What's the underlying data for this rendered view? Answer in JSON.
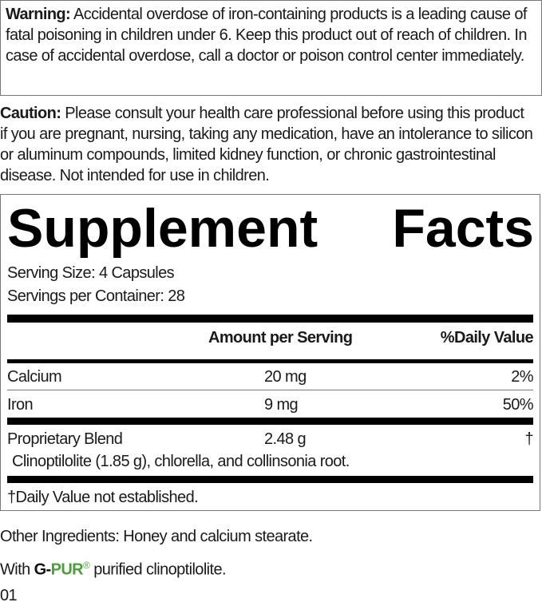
{
  "warning": {
    "label": "Warning:",
    "text": " Accidental overdose of iron-containing products is a leading cause of fatal poisoning in children under 6. Keep this product out of reach of children. In case of accidental overdose, call a doctor or poison control center immediately."
  },
  "caution": {
    "label": "Caution:",
    "text": " Please consult your health care professional before using this product if you are pregnant, nursing, taking any medication, have an intolerance to silicon or aluminum compounds, limited kidney function, or chronic gastrointestinal disease. Not intended for use in children."
  },
  "facts": {
    "title_1": "Supplement",
    "title_2": "Facts",
    "serving_size": "Serving Size: 4 Capsules",
    "servings_per_container": "Servings per Container: 28",
    "header_amount": "Amount per Serving",
    "header_dv": "%Daily Value",
    "rows": [
      {
        "name": "Calcium",
        "amount": "20 mg",
        "dv": "2%"
      },
      {
        "name": "Iron",
        "amount": "9 mg",
        "dv": "50%"
      },
      {
        "name": "Proprietary Blend",
        "amount": "2.48 g",
        "dv": "†",
        "detail": "Clinoptilolite (1.85 g), chlorella, and collinsonia root."
      }
    ],
    "footnote": "†Daily Value not established."
  },
  "other_ingredients": "Other Ingredients: Honey and calcium stearate.",
  "with_line": {
    "prefix": "With ",
    "brand_g": "G-",
    "brand_pur": "PUR",
    "reg": "®",
    "suffix": " purified clinoptilolite."
  },
  "code": "01",
  "colors": {
    "brand_green": "#4a9e3a"
  }
}
